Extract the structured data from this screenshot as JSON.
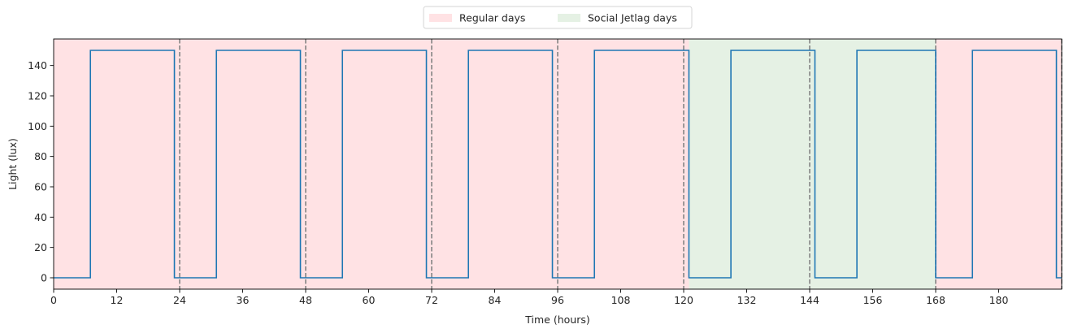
{
  "chart_data": {
    "type": "line",
    "title": "",
    "xlabel": "Time (hours)",
    "ylabel": "Light (lux)",
    "xlim": [
      0,
      192
    ],
    "ylim": [
      -7.5,
      157.5
    ],
    "xticks": [
      0,
      12,
      24,
      36,
      48,
      60,
      72,
      84,
      96,
      108,
      120,
      132,
      144,
      156,
      168,
      180
    ],
    "yticks": [
      0,
      20,
      40,
      60,
      80,
      100,
      120,
      140,
      160
    ],
    "ytick_labels": [
      "0",
      "20",
      "40",
      "60",
      "80",
      "100",
      "120",
      "140",
      ""
    ],
    "day_boundaries": [
      24,
      48,
      72,
      96,
      120,
      144,
      168,
      192
    ],
    "regions": [
      {
        "label": "Regular days",
        "start": 0,
        "end": 121,
        "color": "#ffe2e4"
      },
      {
        "label": "Social Jetlag days",
        "start": 121,
        "end": 168,
        "color": "#e5f1e4"
      },
      {
        "label": "Regular days",
        "start": 168,
        "end": 192,
        "color": "#ffe2e4"
      }
    ],
    "legend": {
      "placement": "top-center",
      "entries": [
        {
          "label": "Regular days",
          "color": "#ffe2e4"
        },
        {
          "label": "Social Jetlag days",
          "color": "#e5f1e4"
        }
      ]
    },
    "series": [
      {
        "color": "#1f77b4",
        "step": "post",
        "points": [
          [
            0,
            0
          ],
          [
            7,
            150
          ],
          [
            23,
            0
          ],
          [
            31,
            150
          ],
          [
            47,
            0
          ],
          [
            55,
            150
          ],
          [
            71,
            0
          ],
          [
            79,
            150
          ],
          [
            95,
            0
          ],
          [
            103,
            150
          ],
          [
            121,
            0
          ],
          [
            129,
            150
          ],
          [
            145,
            0
          ],
          [
            153,
            150
          ],
          [
            168,
            0
          ],
          [
            175,
            150
          ],
          [
            191,
            0
          ],
          [
            192,
            0
          ]
        ]
      }
    ]
  }
}
